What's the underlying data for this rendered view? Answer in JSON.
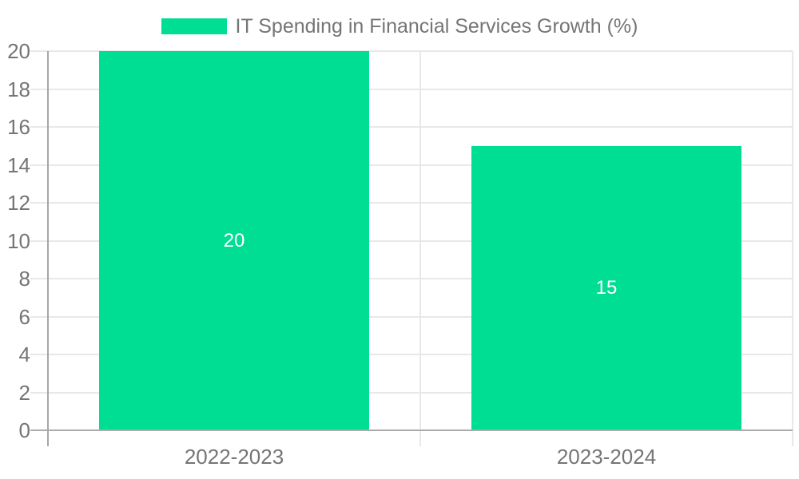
{
  "chart_data": {
    "type": "bar",
    "title": "",
    "legend": {
      "label": "IT Spending in Financial Services Growth (%)",
      "position": "top-center"
    },
    "categories": [
      "2022-2023",
      "2023-2024"
    ],
    "values": [
      20,
      15
    ],
    "bar_labels": [
      "20",
      "15"
    ],
    "ylim": [
      0,
      20
    ],
    "yticks": [
      0,
      2,
      4,
      6,
      8,
      10,
      12,
      14,
      16,
      18,
      20
    ],
    "grid": true,
    "legend_visible": true,
    "colors": {
      "bar": "#00de93",
      "bar_label_text": "#ffffff",
      "grid_line": "#e8e8e8",
      "zero_line": "#ababab",
      "axis_line": "#a6a6a6",
      "tick_text": "#757575",
      "legend_text": "#757575",
      "background": "#ffffff"
    }
  }
}
